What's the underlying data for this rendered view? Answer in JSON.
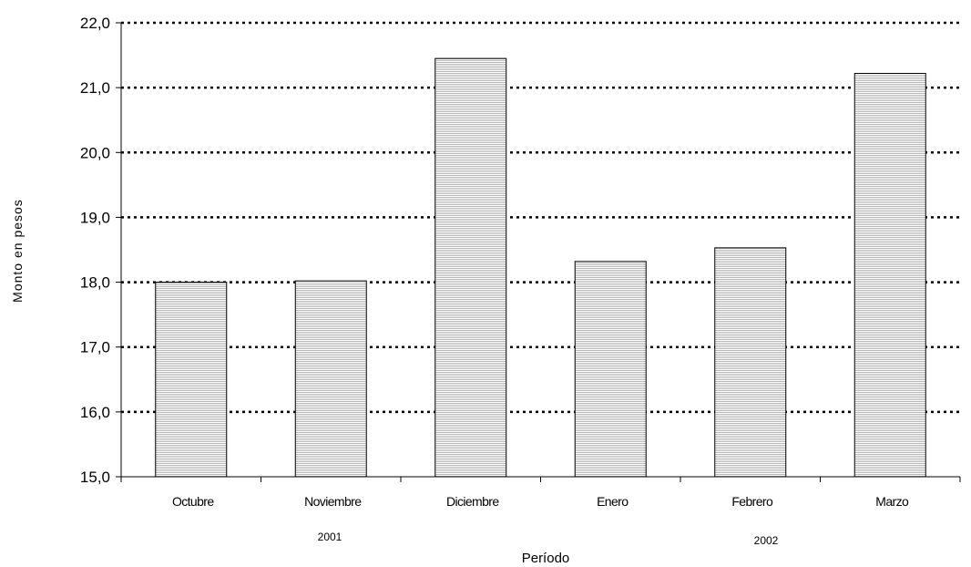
{
  "chart_data": {
    "type": "bar",
    "categories": [
      "Octubre",
      "Noviembre",
      "Diciembre",
      "Enero",
      "Febrero",
      "Marzo"
    ],
    "values": [
      18.0,
      18.02,
      21.45,
      18.32,
      18.53,
      21.22
    ],
    "xlabel": "Período",
    "ylabel": "Monto en pesos",
    "ylim": [
      15.0,
      22.0
    ],
    "yticks": [
      "15,0",
      "16,0",
      "17,0",
      "18,0",
      "19,0",
      "20,0",
      "21,0",
      "22,0"
    ],
    "year_labels": [
      "2001",
      "2002"
    ],
    "grid": "horizontal dotted",
    "bar_fill": "light gray hatched",
    "colors": {
      "bar_fill": "#e6e6e6",
      "bar_stroke": "#000000",
      "grid": "#000000"
    }
  }
}
